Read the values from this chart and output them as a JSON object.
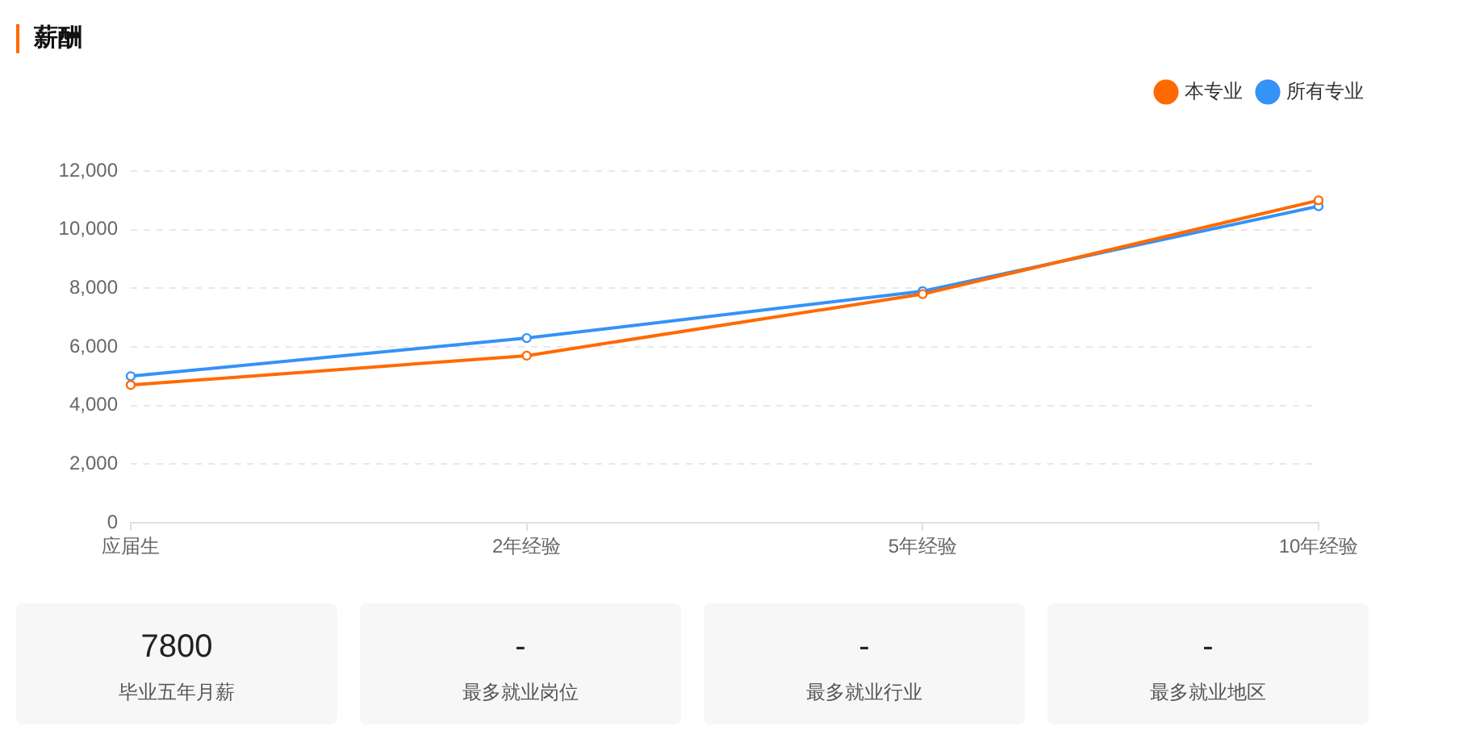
{
  "chart_data": [
    {
      "type": "line",
      "title": "薪酬",
      "categories": [
        "应届生",
        "2年经验",
        "5年经验",
        "10年经验"
      ],
      "series": [
        {
          "name": "本专业",
          "color": "#ff6a00",
          "values": [
            4700,
            5700,
            7800,
            11000
          ]
        },
        {
          "name": "所有专业",
          "color": "#3592f7",
          "values": [
            5000,
            6300,
            7900,
            10800
          ]
        }
      ],
      "ylim": [
        0,
        12000
      ],
      "yticks": [
        0,
        {
          "value": 2000,
          "label": "2,000"
        },
        {
          "value": 4000,
          "label": "4,000"
        },
        {
          "value": 6000,
          "label": "6,000"
        },
        {
          "value": 8000,
          "label": "8,000"
        },
        {
          "value": 10000,
          "label": "10,000"
        },
        {
          "value": 12000,
          "label": "12,000"
        }
      ],
      "grid": "y",
      "legend": "top right",
      "marker": "circle",
      "line_style": "solid"
    },
    {
      "type": "other",
      "annotations": [
        "7800",
        "毕业五年月薪"
      ]
    },
    {
      "type": "other",
      "annotations": [
        "-",
        "最多就业岗位"
      ]
    },
    {
      "type": "other",
      "annotations": [
        "-",
        "最多就业行业"
      ]
    },
    {
      "type": "other",
      "annotations": [
        "-",
        "最多就业地区"
      ]
    }
  ]
}
